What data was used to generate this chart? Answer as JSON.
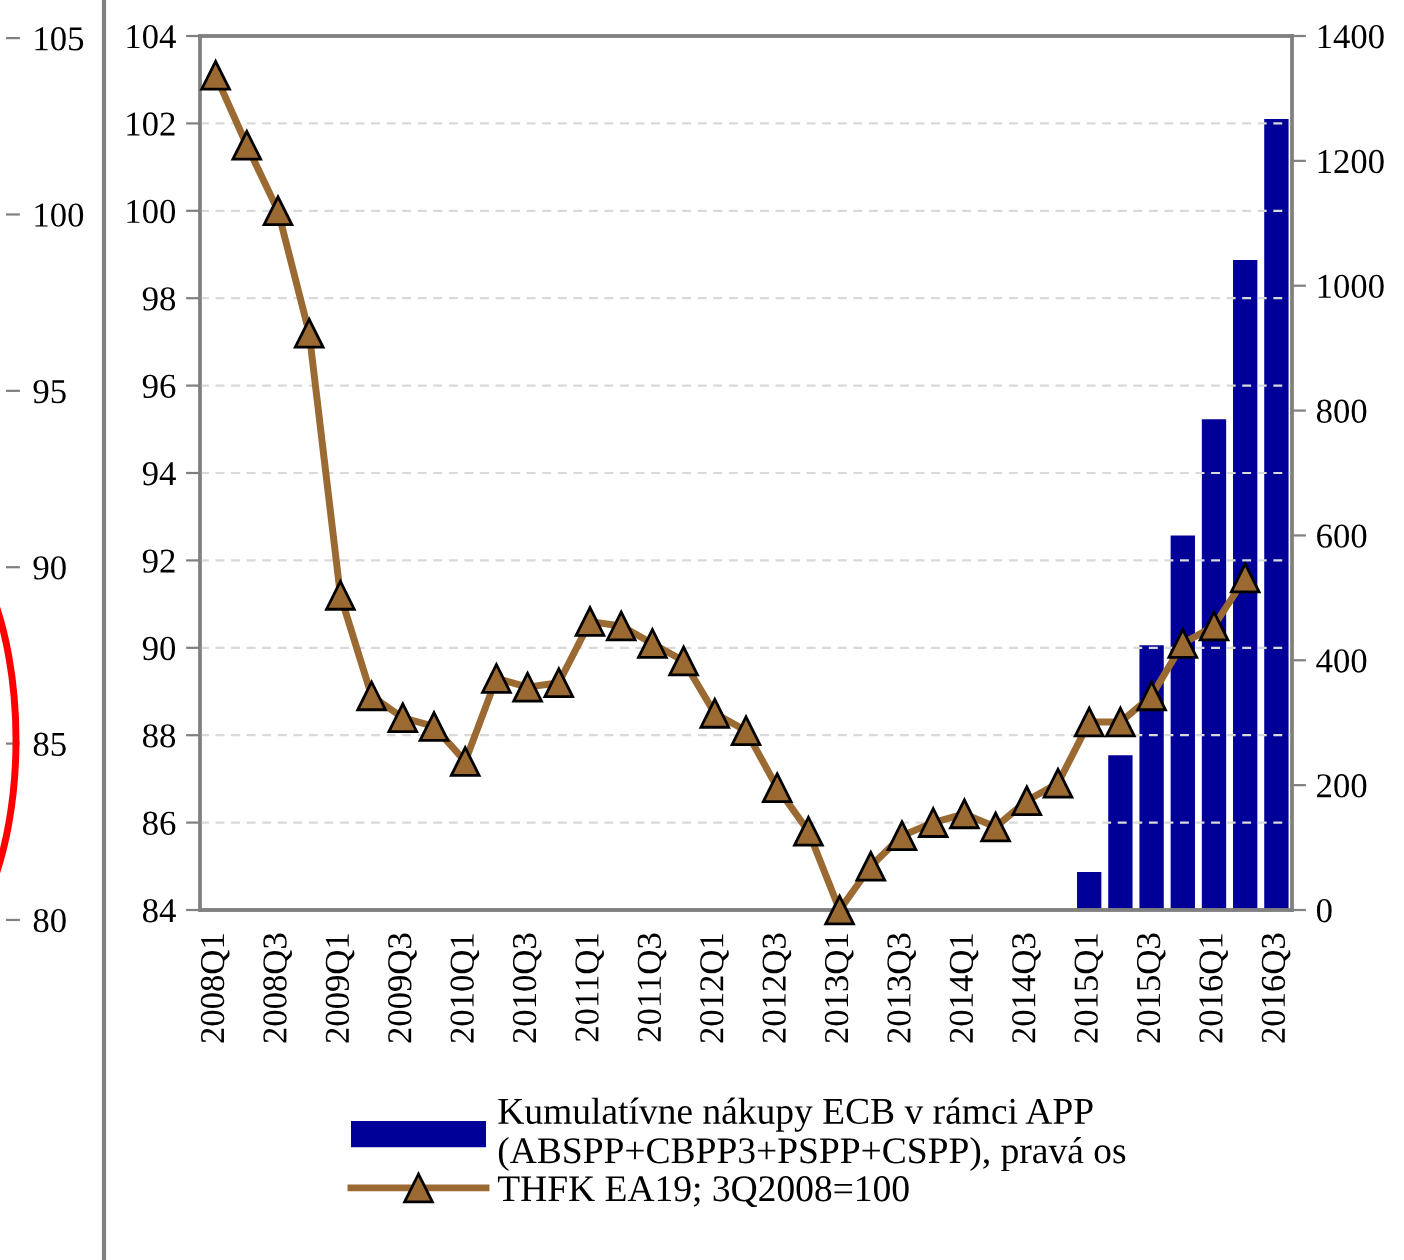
{
  "chart_data": [
    {
      "type": "line",
      "categories": [
        null
      ],
      "ylim": [
        70.36,
        106.08
      ],
      "yticks": [
        80,
        85,
        90,
        95,
        100,
        105
      ],
      "tick_labels": "y"
    },
    {
      "type": "line",
      "categories": [
        "2008Q1",
        null,
        "2008Q3",
        null,
        "2009Q1",
        null,
        "2009Q3",
        null,
        "2010Q1",
        null,
        "2010Q3",
        null,
        "2011Q1",
        null,
        "2011Q3",
        null,
        "2012Q1",
        null,
        "2012Q3",
        null,
        "2013Q1",
        null,
        "2013Q3",
        null,
        "2014Q1",
        null,
        "2014Q3",
        null,
        "2015Q1",
        null,
        "2015Q3",
        null,
        "2016Q1",
        null,
        "2016Q3"
      ],
      "series": [
        {
          "name": "Kumulatívne nákupy ECB v rámci APP\n(ABSPP+CBPP3+PSPP+CSPP), pravá os",
          "type": "bar",
          "axis": "y2",
          "color": "#000099",
          "values": [
            null,
            null,
            null,
            null,
            null,
            null,
            null,
            null,
            null,
            null,
            null,
            null,
            null,
            null,
            null,
            null,
            null,
            null,
            null,
            null,
            null,
            null,
            null,
            null,
            null,
            null,
            null,
            null,
            61,
            248,
            424,
            600,
            786,
            1041,
            1267
          ]
        },
        {
          "name": "THFK EA19; 3Q2008=100",
          "color": "#9b6a32",
          "marker": "triangle",
          "line_style": "solid",
          "values": [
            103.1,
            101.5,
            100.0,
            97.2,
            91.2,
            88.9,
            88.4,
            88.2,
            87.4,
            89.3,
            89.1,
            89.2,
            90.6,
            90.5,
            90.1,
            89.7,
            88.5,
            88.1,
            86.8,
            85.8,
            84.0,
            85.0,
            85.7,
            86.0,
            86.2,
            85.9,
            86.5,
            86.9,
            88.3,
            88.3,
            88.9,
            90.1,
            90.5,
            91.6,
            null
          ]
        }
      ],
      "ylim": [
        84,
        104
      ],
      "yticks": [
        84,
        86,
        88,
        90,
        92,
        94,
        96,
        98,
        100,
        102,
        104
      ],
      "y2lim": [
        0,
        1400
      ],
      "y2ticks": [
        0,
        200,
        400,
        600,
        800,
        1000,
        1200,
        1400
      ],
      "grid": "y",
      "legend": "bottom"
    }
  ]
}
